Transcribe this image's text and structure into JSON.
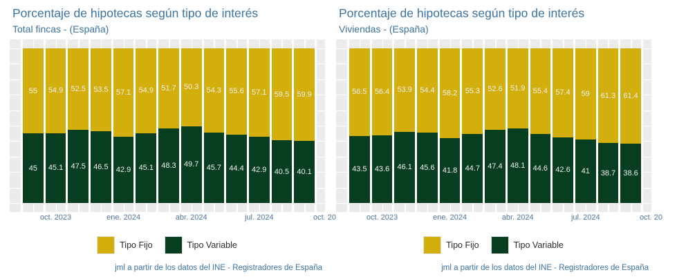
{
  "colors": {
    "tipo_fijo": "#d2af0d",
    "tipo_variable": "#073e1f",
    "panel_background": "#ebebeb",
    "gridline": "#ffffff",
    "title_text": "#3b73a3",
    "axis_text": "#4f759c",
    "caption_text": "#3b73a3",
    "bar_label_text": "#ededed",
    "legend_text": "#2b2b2b"
  },
  "chart_data": [
    {
      "type": "bar",
      "stacked": true,
      "title": "Porcentaje de hipotecas según tipo de interés",
      "subtitle": "Total fincas - (España)",
      "ylim": [
        0,
        100
      ],
      "grid": "white gridlines on gray panel, horizontal every 10",
      "legend_position": "bottom",
      "x_tick_labels": [
        "oct. 2023",
        "ene. 2024",
        "abr. 2024",
        "jul. 2024",
        "oct. 20"
      ],
      "x_tick_bar_indices": [
        1,
        4,
        7,
        10,
        13
      ],
      "series": [
        {
          "name": "Tipo Fijo",
          "color": "#d2af0d",
          "values": [
            55,
            54.9,
            52.5,
            53.5,
            57.1,
            54.9,
            51.7,
            50.3,
            54.3,
            55.6,
            57.1,
            59.5,
            59.9
          ]
        },
        {
          "name": "Tipo Variable",
          "color": "#073e1f",
          "values": [
            45,
            45.1,
            47.5,
            46.5,
            42.9,
            45.1,
            48.3,
            49.7,
            45.7,
            44.4,
            42.9,
            40.5,
            40.1
          ]
        }
      ],
      "caption": "jml a partir de los datos del INE - Registradores de España"
    },
    {
      "type": "bar",
      "stacked": true,
      "title": "Porcentaje de hipotecas según tipo de interés",
      "subtitle": "Viviendas - (España)",
      "ylim": [
        0,
        100
      ],
      "grid": "white gridlines on gray panel, horizontal every 10",
      "legend_position": "bottom",
      "x_tick_labels": [
        "oct. 2023",
        "ene. 2024",
        "abr. 2024",
        "jul. 2024",
        "oct. 20"
      ],
      "x_tick_bar_indices": [
        1,
        4,
        7,
        10,
        13
      ],
      "series": [
        {
          "name": "Tipo Fijo",
          "color": "#d2af0d",
          "values": [
            56.5,
            56.4,
            53.9,
            54.4,
            58.2,
            55.3,
            52.6,
            51.9,
            55.4,
            57.4,
            59,
            61.3,
            61.4
          ]
        },
        {
          "name": "Tipo Variable",
          "color": "#073e1f",
          "values": [
            43.5,
            43.6,
            46.1,
            45.6,
            41.8,
            44.7,
            47.4,
            48.1,
            44.6,
            42.6,
            41,
            38.7,
            38.6
          ]
        }
      ],
      "caption": "jml a partir de los datos del INE - Registradores de España"
    }
  ]
}
